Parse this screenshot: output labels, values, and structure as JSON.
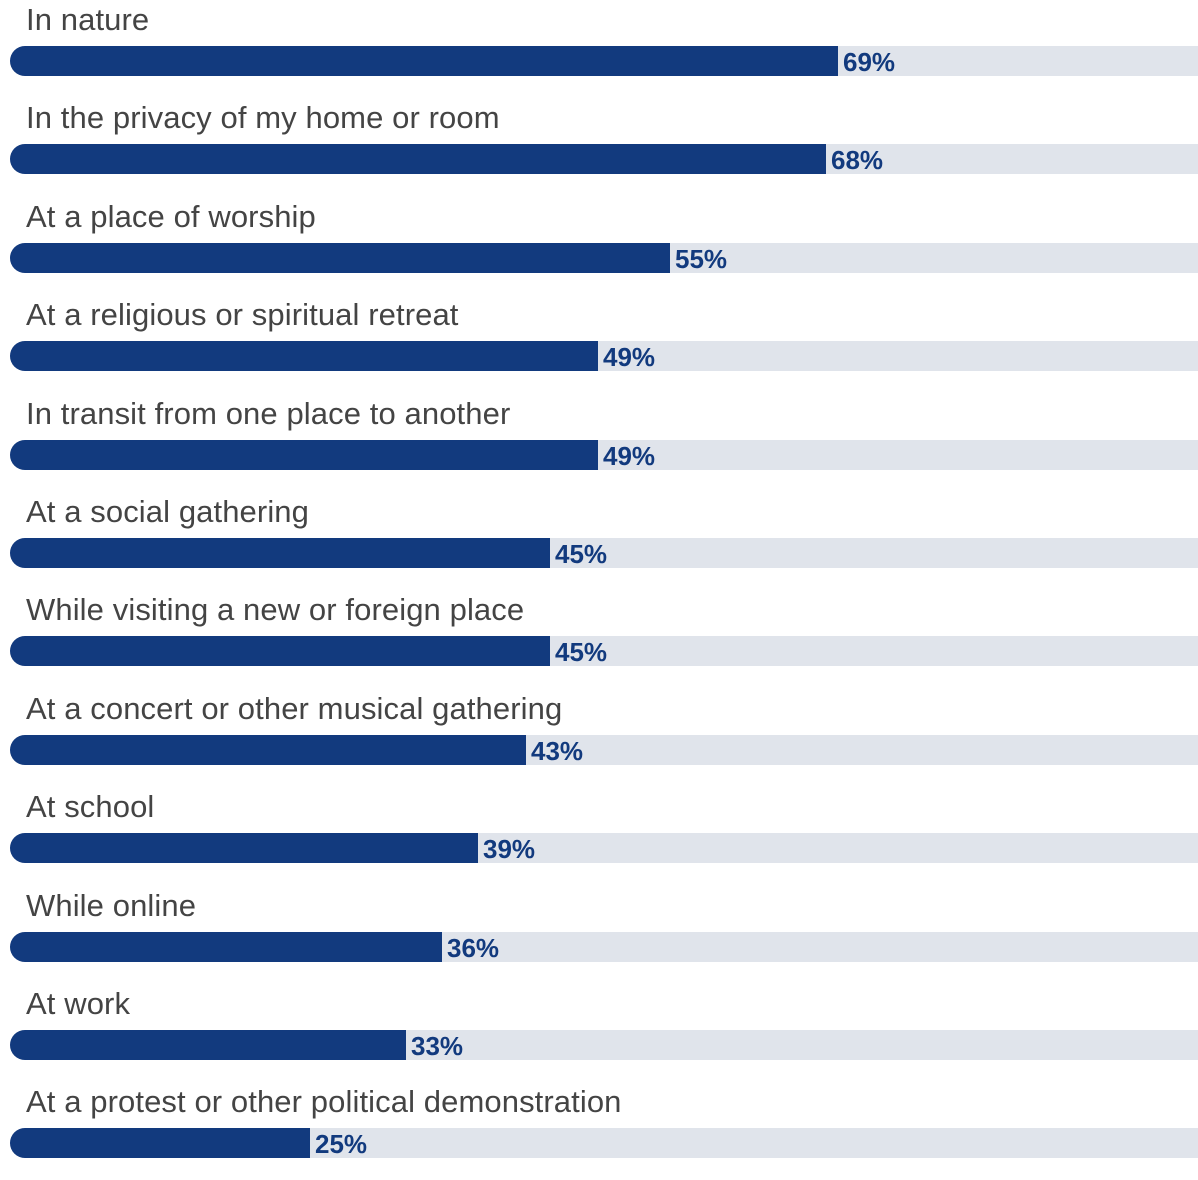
{
  "chart_data": {
    "type": "bar",
    "orientation": "horizontal",
    "categories": [
      "In nature",
      "In the privacy of my home or room",
      "At a place of worship",
      "At a religious or spiritual retreat",
      "In transit from one place to another",
      "At a social gathering",
      "While visiting a new or foreign place",
      "At a concert or other musical gathering",
      "At school",
      "While online",
      "At work",
      "At a protest or other political demonstration"
    ],
    "values": [
      69,
      68,
      55,
      49,
      49,
      45,
      45,
      43,
      39,
      36,
      33,
      25
    ],
    "value_labels": [
      "69%",
      "68%",
      "55%",
      "49%",
      "49%",
      "45%",
      "45%",
      "43%",
      "39%",
      "36%",
      "33%",
      "25%"
    ],
    "xlim": [
      0,
      100
    ],
    "grid": false,
    "legend": "none",
    "colors": {
      "bar": "#123a7e",
      "track": "#e0e4eb",
      "label": "#444444",
      "value": "#123a7e"
    }
  }
}
